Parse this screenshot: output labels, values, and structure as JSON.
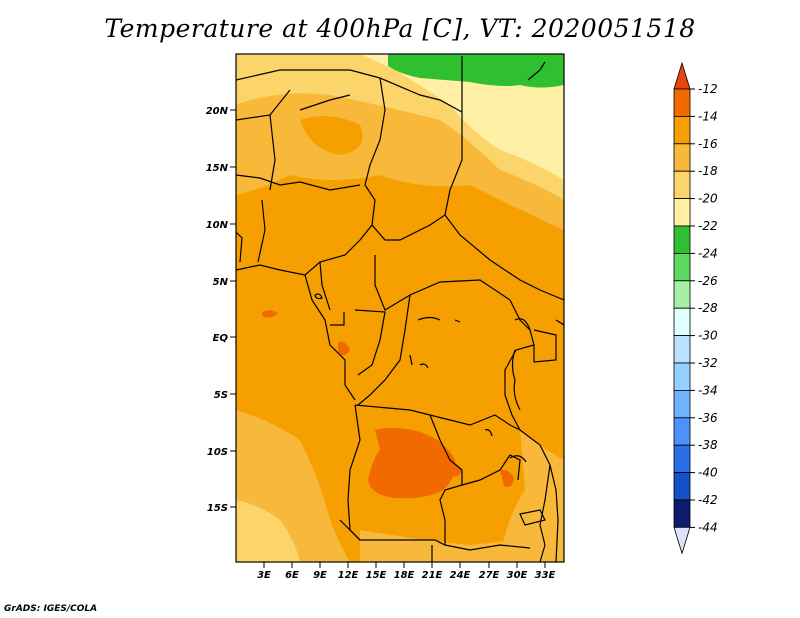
{
  "title": "Temperature at 400hPa [C], VT: 2020051518",
  "credit": "GrADS: IGES/COLA",
  "map": {
    "lat_labels": [
      "20N",
      "15N",
      "10N",
      "5N",
      "EQ",
      "5S",
      "10S",
      "15S"
    ],
    "lon_labels": [
      "3E",
      "6E",
      "9E",
      "12E",
      "15E",
      "18E",
      "21E",
      "24E",
      "27E",
      "30E",
      "33E"
    ]
  },
  "colorbar": {
    "labels": [
      "-12",
      "-14",
      "-16",
      "-18",
      "-20",
      "-22",
      "-24",
      "-26",
      "-28",
      "-30",
      "-32",
      "-34",
      "-36",
      "-38",
      "-40",
      "-42",
      "-44"
    ],
    "colors": [
      "#e8470b",
      "#f06a00",
      "#f5a000",
      "#f8b83a",
      "#fbd56a",
      "#fff0a5",
      "#2fc02f",
      "#5ed85e",
      "#a5f0a5",
      "#e0ffff",
      "#b8e2ff",
      "#96d0ff",
      "#6fb3ff",
      "#4b92ff",
      "#2b6fe8",
      "#1550c8",
      "#0d1a6e"
    ],
    "top_arrow_color": "#e8470b",
    "bottom_arrow_color": "#e0e0ff"
  }
}
